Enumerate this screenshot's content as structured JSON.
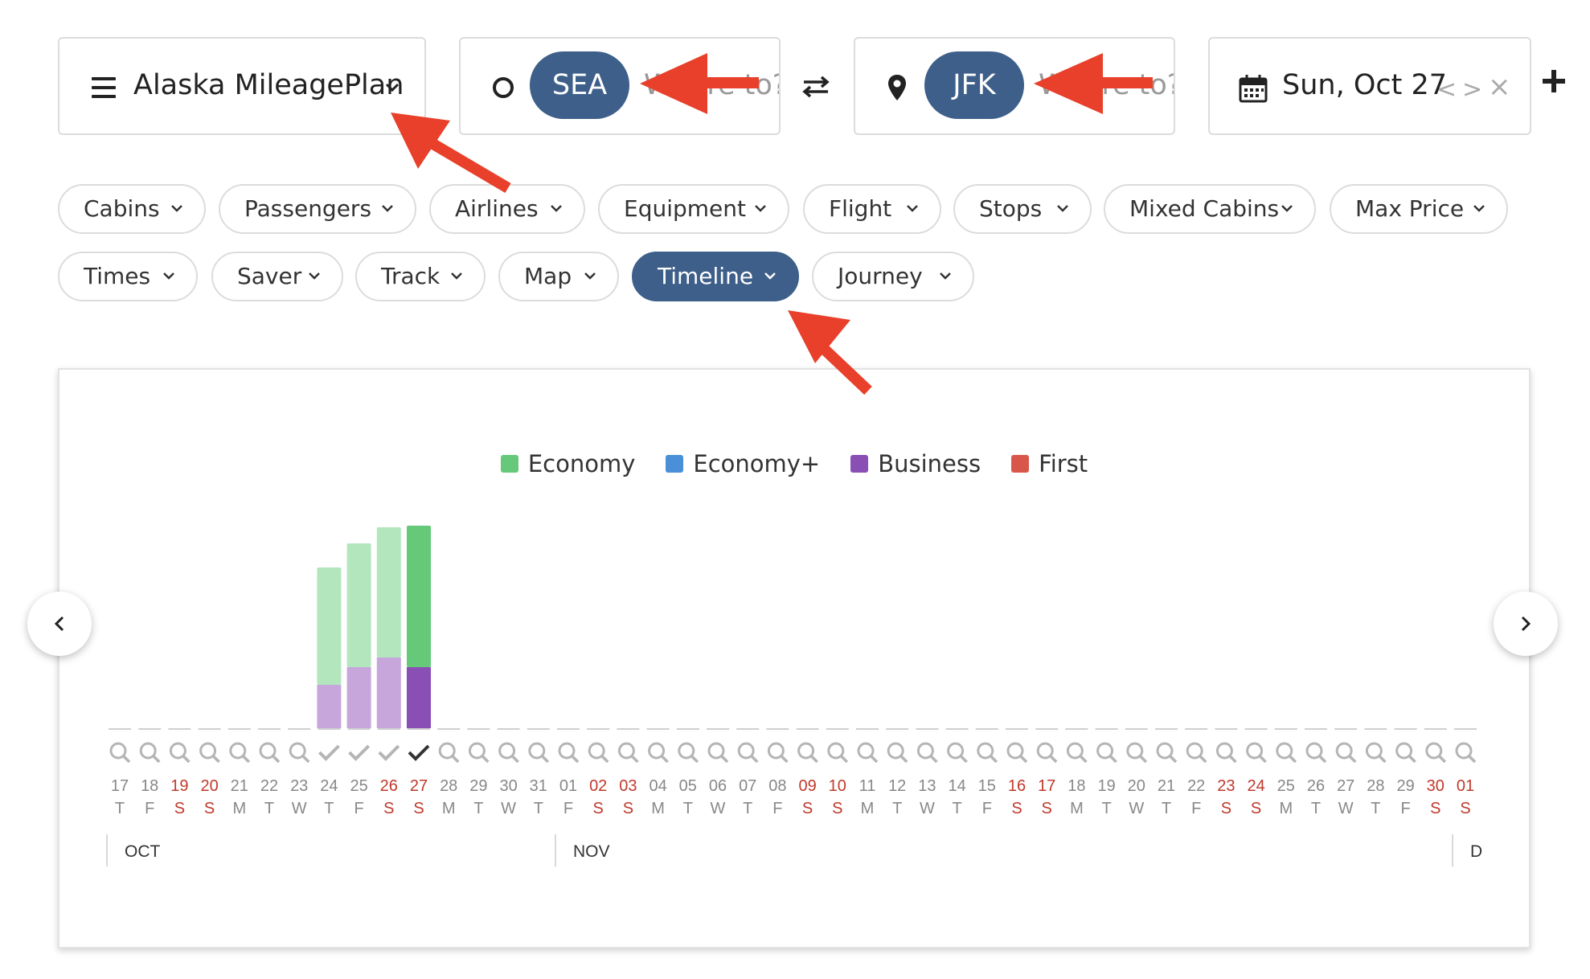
{
  "program": {
    "label": "Alaska MileagePlan"
  },
  "origin": {
    "code": "SEA",
    "ghost_text": "Where to?"
  },
  "destination": {
    "code": "JFK",
    "ghost_text": "Where to?"
  },
  "date": {
    "label": "Sun, Oct 27",
    "prev": "<",
    "next": ">",
    "clear": "×"
  },
  "filters_row1": [
    {
      "label": "Cabins"
    },
    {
      "label": "Passengers"
    },
    {
      "label": "Airlines"
    },
    {
      "label": "Equipment"
    },
    {
      "label": "Flight"
    },
    {
      "label": "Stops"
    },
    {
      "label": "Mixed Cabins"
    },
    {
      "label": "Max Price"
    }
  ],
  "filters_row2": [
    {
      "label": "Times"
    },
    {
      "label": "Saver"
    },
    {
      "label": "Track"
    },
    {
      "label": "Map"
    },
    {
      "label": "Timeline",
      "active": true
    },
    {
      "label": "Journey"
    }
  ],
  "colors": {
    "accent": "#3d5f8a",
    "economy": "#66c97a",
    "economy_plus": "#4a90d9",
    "business": "#8a4fb5",
    "first": "#d9574a",
    "weekend": "#c0392b",
    "annotation_arrow": "#e8402a"
  },
  "legend": [
    {
      "label": "Economy",
      "color": "#66c97a"
    },
    {
      "label": "Economy+",
      "color": "#4a90d9"
    },
    {
      "label": "Business",
      "color": "#8a4fb5"
    },
    {
      "label": "First",
      "color": "#d9574a"
    }
  ],
  "chart_data": {
    "type": "bar",
    "stacked": true,
    "categories": [
      "17",
      "18",
      "19",
      "20",
      "21",
      "22",
      "23",
      "24",
      "25",
      "26",
      "27",
      "28",
      "29",
      "30",
      "31",
      "01",
      "02",
      "03",
      "04",
      "05",
      "06",
      "07",
      "08",
      "09",
      "10",
      "11",
      "12",
      "13",
      "14",
      "15",
      "16",
      "17",
      "18",
      "19",
      "20",
      "21",
      "22",
      "23",
      "24",
      "25",
      "26",
      "27",
      "28",
      "29",
      "30",
      "01"
    ],
    "weekdays": [
      "T",
      "F",
      "S",
      "S",
      "M",
      "T",
      "W",
      "T",
      "F",
      "S",
      "S",
      "M",
      "T",
      "W",
      "T",
      "F",
      "S",
      "S",
      "M",
      "T",
      "W",
      "T",
      "F",
      "S",
      "S",
      "M",
      "T",
      "W",
      "T",
      "F",
      "S",
      "S",
      "M",
      "T",
      "W",
      "T",
      "F",
      "S",
      "S",
      "M",
      "T",
      "W",
      "T",
      "F",
      "S",
      "S"
    ],
    "status": [
      "search",
      "search",
      "search",
      "search",
      "search",
      "search",
      "search",
      "check",
      "check",
      "check",
      "check-selected",
      "search",
      "search",
      "search",
      "search",
      "search",
      "search",
      "search",
      "search",
      "search",
      "search",
      "search",
      "search",
      "search",
      "search",
      "search",
      "search",
      "search",
      "search",
      "search",
      "search",
      "search",
      "search",
      "search",
      "search",
      "search",
      "search",
      "search",
      "search",
      "search",
      "search",
      "search",
      "search",
      "search",
      "search",
      "search"
    ],
    "series": [
      {
        "name": "Business",
        "values": [
          0,
          0,
          0,
          0,
          0,
          0,
          0,
          27,
          38,
          44,
          38,
          0,
          0,
          0,
          0,
          0,
          0,
          0,
          0,
          0,
          0,
          0,
          0,
          0,
          0,
          0,
          0,
          0,
          0,
          0,
          0,
          0,
          0,
          0,
          0,
          0,
          0,
          0,
          0,
          0,
          0,
          0,
          0,
          0,
          0,
          0
        ]
      },
      {
        "name": "Economy",
        "values": [
          0,
          0,
          0,
          0,
          0,
          0,
          0,
          73,
          77,
          81,
          88,
          0,
          0,
          0,
          0,
          0,
          0,
          0,
          0,
          0,
          0,
          0,
          0,
          0,
          0,
          0,
          0,
          0,
          0,
          0,
          0,
          0,
          0,
          0,
          0,
          0,
          0,
          0,
          0,
          0,
          0,
          0,
          0,
          0,
          0,
          0
        ]
      }
    ],
    "selected_index": 10,
    "months": [
      {
        "label": "OCT",
        "start_index": 0
      },
      {
        "label": "NOV",
        "start_index": 15
      },
      {
        "label": "D",
        "start_index": 45
      }
    ]
  }
}
